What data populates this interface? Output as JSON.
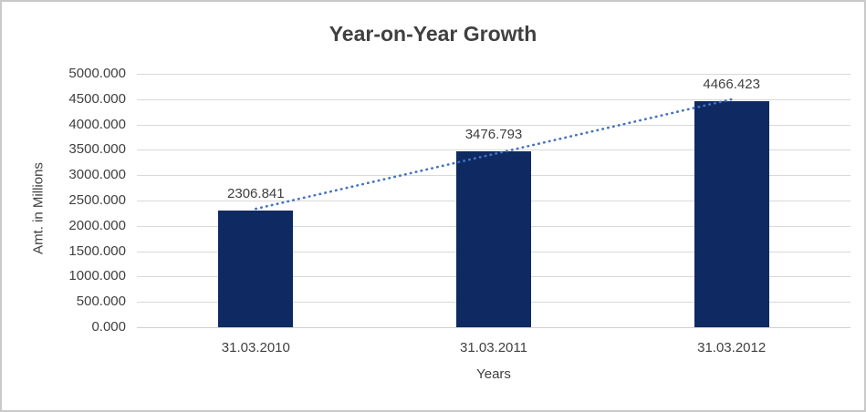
{
  "chart_data": {
    "type": "bar",
    "title": "Year-on-Year Growth",
    "xlabel": "Years",
    "ylabel": "Amt. in Millions",
    "categories": [
      "31.03.2010",
      "31.03.2011",
      "31.03.2012"
    ],
    "values": [
      2306.841,
      3476.793,
      4466.423
    ],
    "data_labels": [
      "2306.841",
      "3476.793",
      "4466.423"
    ],
    "y_ticks": [
      "0.000",
      "500.000",
      "1000.000",
      "1500.000",
      "2000.000",
      "2500.000",
      "3000.000",
      "3500.000",
      "4000.000",
      "4500.000",
      "5000.000"
    ],
    "ylim": [
      0,
      5000
    ],
    "grid": true,
    "legend": "none",
    "series_name": "Amt. in Millions",
    "trendline": {
      "type": "linear",
      "style": "dotted"
    }
  },
  "colors": {
    "bar": "#0f2a63",
    "trendline": "#4472c4",
    "gridline": "#d9d9d9",
    "text": "#404040",
    "background": "#ffffff",
    "border": "#c9c9c9"
  }
}
